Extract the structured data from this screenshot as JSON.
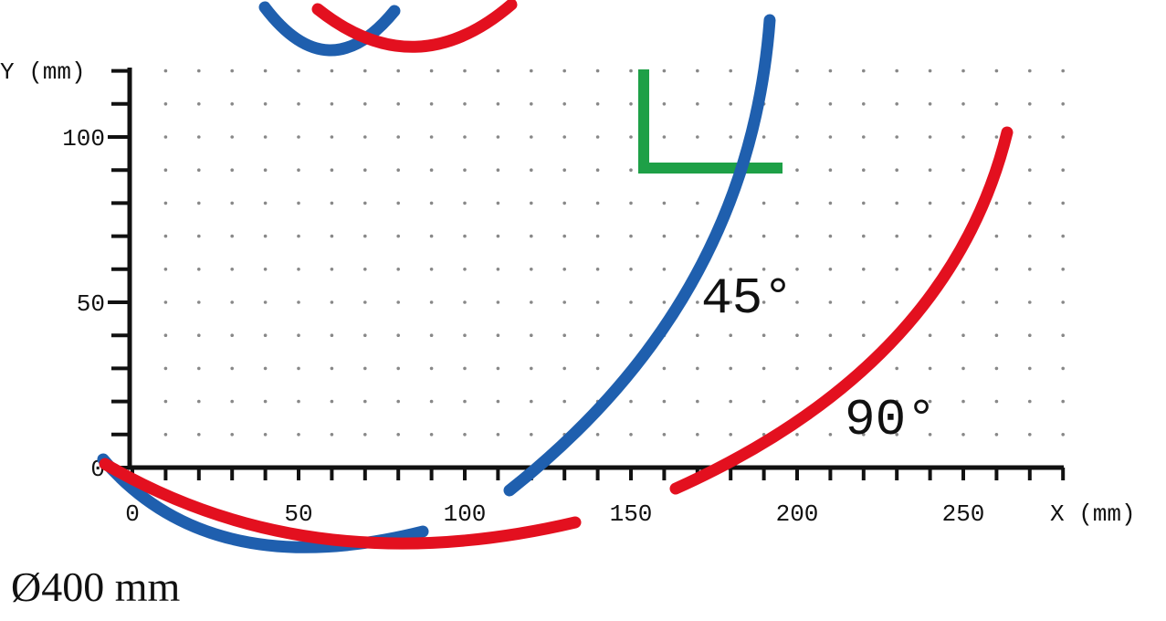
{
  "x_axis": {
    "label": "X (mm)",
    "ticks": [
      0,
      50,
      100,
      150,
      200,
      250
    ]
  },
  "y_axis": {
    "label": "Y (mm)",
    "ticks": [
      0,
      50,
      100
    ]
  },
  "curves": [
    {
      "label": "45°",
      "color": "#1f5fae"
    },
    {
      "label": "90°",
      "color": "#e3101f"
    }
  ],
  "caption": "Ø400 mm"
}
